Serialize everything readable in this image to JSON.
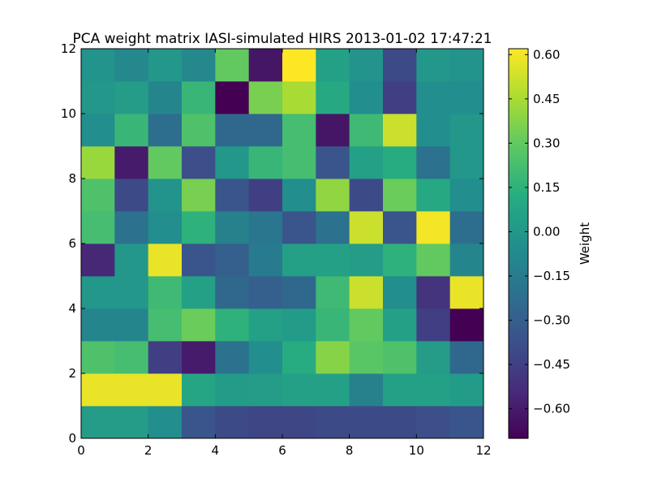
{
  "chart_data": {
    "type": "heatmap",
    "title": "PCA weight matrix IASI-simulated HIRS 2013-01-02 17:47:21",
    "xlabel": "",
    "ylabel": "",
    "xlim": [
      0,
      12
    ],
    "ylim": [
      0,
      12
    ],
    "x_ticks": [
      "0",
      "2",
      "4",
      "6",
      "8",
      "10",
      "12"
    ],
    "y_ticks": [
      "0",
      "2",
      "4",
      "6",
      "8",
      "10",
      "12"
    ],
    "colorbar": {
      "label": "Weight",
      "colormap": "viridis",
      "vmin": -0.7,
      "vmax": 0.62,
      "ticks": [
        "−0.60",
        "−0.45",
        "−0.30",
        "−0.15",
        "0.00",
        "0.15",
        "0.30",
        "0.45",
        "0.60"
      ]
    },
    "grid": false,
    "rows_bottom_to_top": [
      [
        0.03,
        0.03,
        -0.05,
        -0.35,
        -0.4,
        -0.42,
        -0.42,
        -0.4,
        -0.4,
        -0.4,
        -0.38,
        -0.35
      ],
      [
        0.58,
        0.58,
        0.58,
        0.08,
        0.02,
        0.03,
        0.05,
        0.05,
        -0.12,
        0.05,
        0.05,
        0.02
      ],
      [
        0.25,
        0.22,
        -0.45,
        -0.6,
        -0.2,
        -0.05,
        0.12,
        0.38,
        0.28,
        0.25,
        0.03,
        -0.25
      ],
      [
        -0.1,
        -0.1,
        0.22,
        0.32,
        0.15,
        0.05,
        0.02,
        0.18,
        0.3,
        0.05,
        -0.45,
        -0.7
      ],
      [
        0.0,
        0.0,
        0.2,
        0.05,
        -0.25,
        -0.3,
        -0.25,
        0.2,
        0.52,
        -0.05,
        -0.5,
        0.58
      ],
      [
        -0.55,
        0.0,
        0.58,
        -0.35,
        -0.3,
        -0.15,
        0.05,
        0.05,
        0.03,
        0.15,
        0.3,
        -0.1
      ],
      [
        0.22,
        -0.2,
        -0.05,
        0.15,
        -0.12,
        -0.18,
        -0.35,
        -0.2,
        0.52,
        -0.35,
        0.6,
        -0.22
      ],
      [
        0.25,
        -0.4,
        -0.02,
        0.35,
        -0.35,
        -0.45,
        -0.05,
        0.4,
        -0.4,
        0.32,
        0.1,
        -0.05
      ],
      [
        0.42,
        -0.6,
        0.3,
        -0.38,
        0.0,
        0.18,
        0.22,
        -0.35,
        0.05,
        0.12,
        -0.2,
        0.0
      ],
      [
        -0.05,
        0.18,
        -0.22,
        0.25,
        -0.25,
        -0.25,
        0.22,
        -0.62,
        0.2,
        0.52,
        -0.05,
        0.0
      ],
      [
        0.0,
        0.03,
        -0.1,
        0.18,
        -0.7,
        0.35,
        0.45,
        0.1,
        -0.05,
        -0.45,
        -0.05,
        -0.05
      ],
      [
        -0.02,
        -0.08,
        0.0,
        -0.08,
        0.3,
        -0.62,
        0.62,
        0.05,
        -0.02,
        -0.4,
        0.0,
        -0.02
      ]
    ]
  }
}
